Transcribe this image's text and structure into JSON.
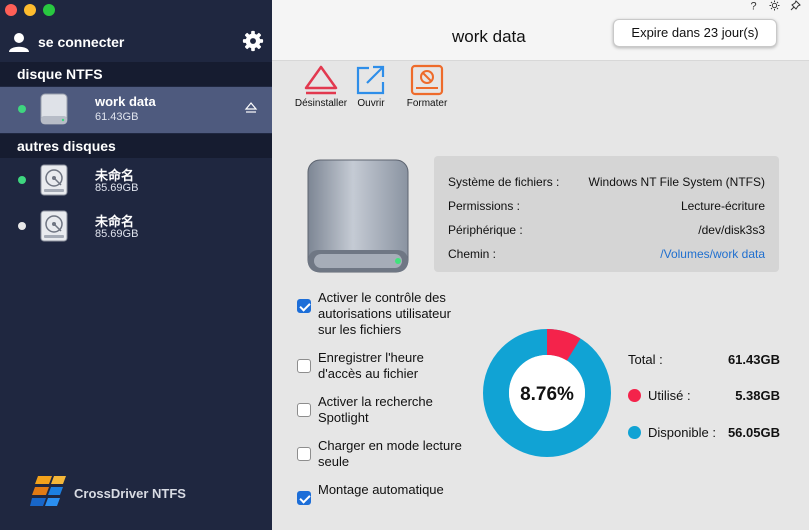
{
  "sidebar": {
    "login_label": "se connecter",
    "section_ntfs": "disque NTFS",
    "section_other": "autres disques",
    "disks": [
      {
        "name": "work data",
        "size": "61.43GB",
        "status": "green"
      },
      {
        "name": "未命名",
        "size": "85.69GB",
        "status": "green"
      },
      {
        "name": "未命名",
        "size": "85.69GB",
        "status": "white"
      }
    ],
    "brand": "CrossDriver NTFS"
  },
  "header": {
    "title": "work data",
    "expire_label": "Expire dans 23 jour(s)"
  },
  "toolbar": {
    "uninstall": "Désinstaller",
    "open": "Ouvrir",
    "format": "Formater"
  },
  "info": {
    "fs_label": "Système de fichiers :",
    "fs_value": "Windows NT File System (NTFS)",
    "perm_label": "Permissions :",
    "perm_value": "Lecture-écriture",
    "device_label": "Périphérique :",
    "device_value": "/dev/disk3s3",
    "path_label": "Chemin :",
    "path_value": "/Volumes/work data"
  },
  "options": [
    {
      "label": "Activer le contrôle des\nautorisations utilisateur\nsur les fichiers",
      "checked": true
    },
    {
      "label": "Enregistrer l'heure\nd'accès au fichier",
      "checked": false
    },
    {
      "label": "Activer la recherche\nSpotlight",
      "checked": false
    },
    {
      "label": "Charger en mode lecture\nseule",
      "checked": false
    },
    {
      "label": "Montage automatique",
      "checked": true
    }
  ],
  "usage": {
    "percent_label": "8.76%",
    "used_fraction": 0.0876,
    "total_label": "Total :",
    "total_value": "61.43GB",
    "used_label": "Utilisé :",
    "used_value": "5.38GB",
    "free_label": "Disponible :",
    "free_value": "56.05GB"
  },
  "colors": {
    "used": "#f4234b",
    "free": "#11a3d4",
    "sidebar_bg": "#1f2740",
    "selected_bg": "#4e5a7e",
    "accent": "#1d6ed8"
  }
}
